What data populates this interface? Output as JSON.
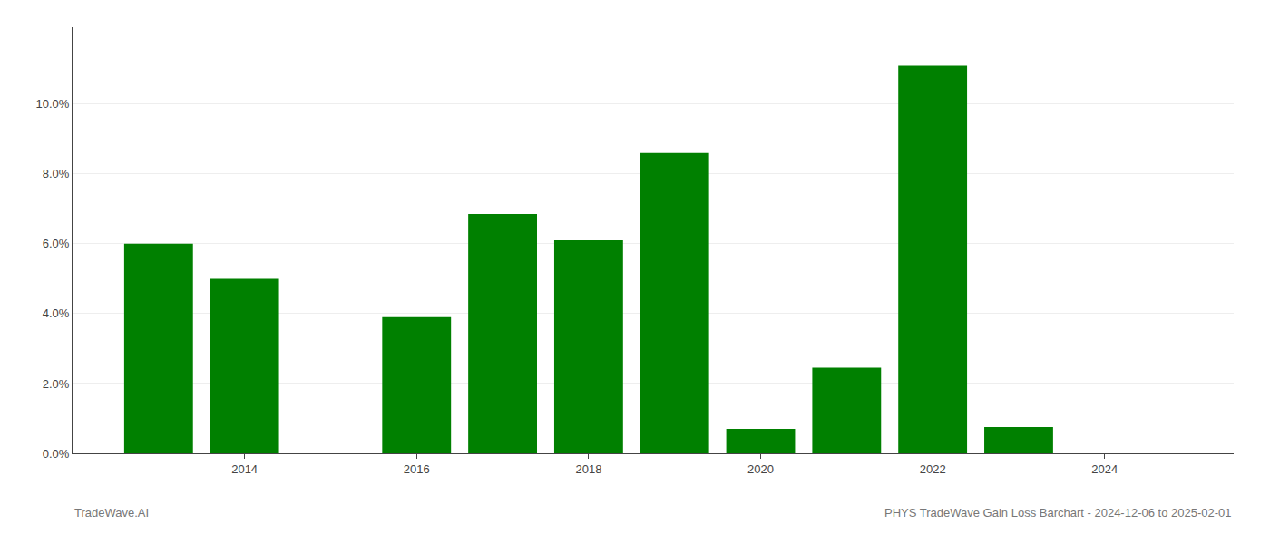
{
  "chart_data": {
    "type": "bar",
    "x": [
      2013,
      2014,
      2015,
      2016,
      2017,
      2018,
      2019,
      2020,
      2021,
      2022,
      2023,
      2024
    ],
    "values": [
      0.06,
      0.05,
      0.0,
      0.039,
      0.0685,
      0.061,
      0.086,
      0.007,
      0.0245,
      0.111,
      0.0075,
      0.0
    ],
    "color": "#008000",
    "xlim": [
      2012.0,
      2025.5
    ],
    "xticks": [
      2014,
      2016,
      2018,
      2020,
      2022,
      2024
    ],
    "ylim": [
      0,
      0.122
    ],
    "yticks": [
      {
        "value": 0.0,
        "label": "0.0%"
      },
      {
        "value": 0.02,
        "label": "2.0%"
      },
      {
        "value": 0.04,
        "label": "4.0%"
      },
      {
        "value": 0.06,
        "label": "6.0%"
      },
      {
        "value": 0.08,
        "label": "8.0%"
      },
      {
        "value": 0.1,
        "label": "10.0%"
      }
    ],
    "grid": true,
    "annotations": [
      "TradeWave.AI",
      "PHYS TradeWave Gain Loss Barchart - 2024-12-06 to 2025-02-01"
    ]
  }
}
